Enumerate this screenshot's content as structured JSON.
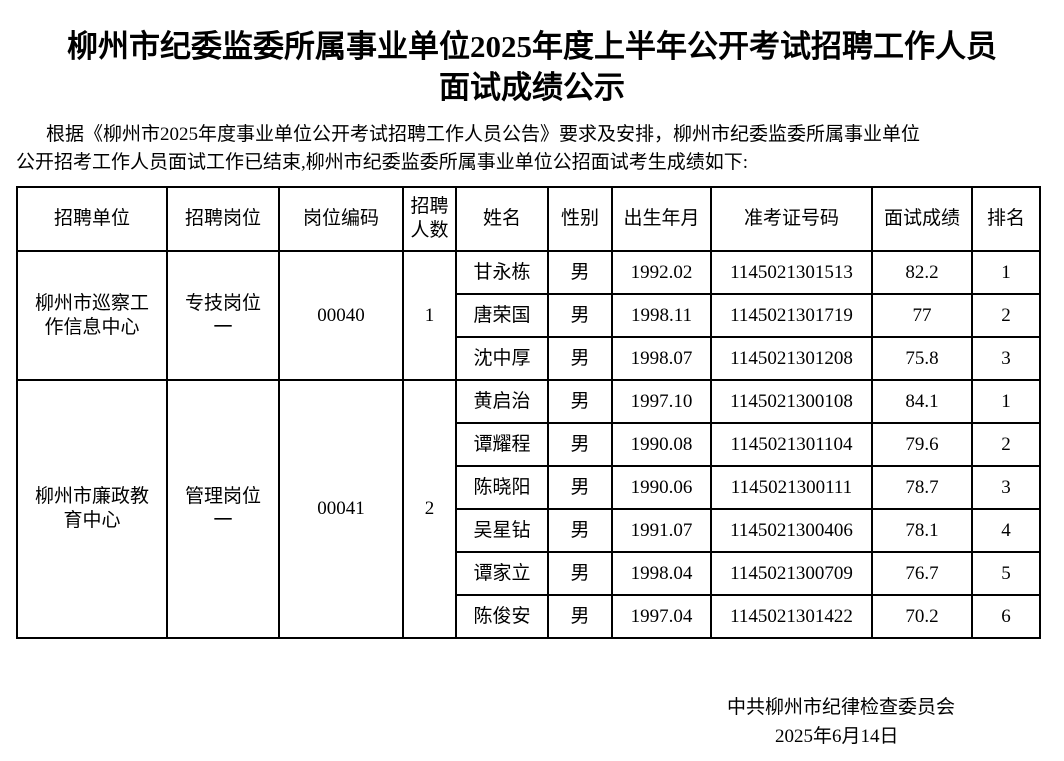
{
  "title": {
    "line1": "柳州市纪委监委所属事业单位2025年度上半年公开考试招聘工作人员",
    "line2": "面试成绩公示"
  },
  "intro": {
    "line1": "根据《柳州市2025年度事业单位公开考试招聘工作人员公告》要求及安排，柳州市纪委监委所属事业单位",
    "line2": "公开招考工作人员面试工作已结束,柳州市纪委监委所属事业单位公招面试考生成绩如下:"
  },
  "table": {
    "headers": [
      "招聘单位",
      "招聘岗位",
      "岗位编码",
      "招聘人数",
      "姓名",
      "性别",
      "出生年月",
      "准考证号码",
      "面试成绩",
      "排名"
    ],
    "groups": [
      {
        "unit": "柳州市巡察工作信息中心",
        "post": "专技岗位一",
        "code": "00040",
        "count": "1",
        "rows": [
          {
            "name": "甘永栋",
            "gender": "男",
            "birth": "1992.02",
            "id": "1145021301513",
            "score": "82.2",
            "rank": "1"
          },
          {
            "name": "唐荣国",
            "gender": "男",
            "birth": "1998.11",
            "id": "1145021301719",
            "score": "77",
            "rank": "2"
          },
          {
            "name": "沈中厚",
            "gender": "男",
            "birth": "1998.07",
            "id": "1145021301208",
            "score": "75.8",
            "rank": "3"
          }
        ]
      },
      {
        "unit": "柳州市廉政教育中心",
        "post": "管理岗位一",
        "code": "00041",
        "count": "2",
        "rows": [
          {
            "name": "黄启治",
            "gender": "男",
            "birth": "1997.10",
            "id": "1145021300108",
            "score": "84.1",
            "rank": "1"
          },
          {
            "name": "谭耀程",
            "gender": "男",
            "birth": "1990.08",
            "id": "1145021301104",
            "score": "79.6",
            "rank": "2"
          },
          {
            "name": "陈晓阳",
            "gender": "男",
            "birth": "1990.06",
            "id": "1145021300111",
            "score": "78.7",
            "rank": "3"
          },
          {
            "name": "吴星钻",
            "gender": "男",
            "birth": "1991.07",
            "id": "1145021300406",
            "score": "78.1",
            "rank": "4"
          },
          {
            "name": "谭家立",
            "gender": "男",
            "birth": "1998.04",
            "id": "1145021300709",
            "score": "76.7",
            "rank": "5"
          },
          {
            "name": "陈俊安",
            "gender": "男",
            "birth": "1997.04",
            "id": "1145021301422",
            "score": "70.2",
            "rank": "6"
          }
        ]
      }
    ]
  },
  "footer": {
    "org": "中共柳州市纪律检查委员会",
    "date": "2025年6月14日"
  }
}
